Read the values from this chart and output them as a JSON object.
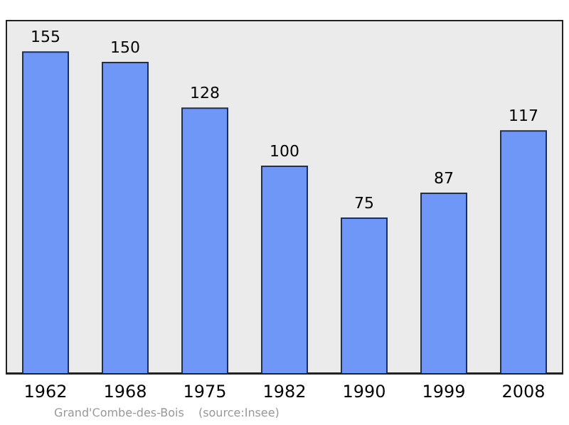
{
  "chart_data": {
    "type": "bar",
    "categories": [
      "1962",
      "1968",
      "1975",
      "1982",
      "1990",
      "1999",
      "2008"
    ],
    "values": [
      155,
      150,
      128,
      100,
      75,
      87,
      117
    ],
    "color": "#6f97f7",
    "data_labels": true,
    "annotations": [
      "Grand'Combe-des-Bois",
      "(source:Insee)"
    ]
  }
}
